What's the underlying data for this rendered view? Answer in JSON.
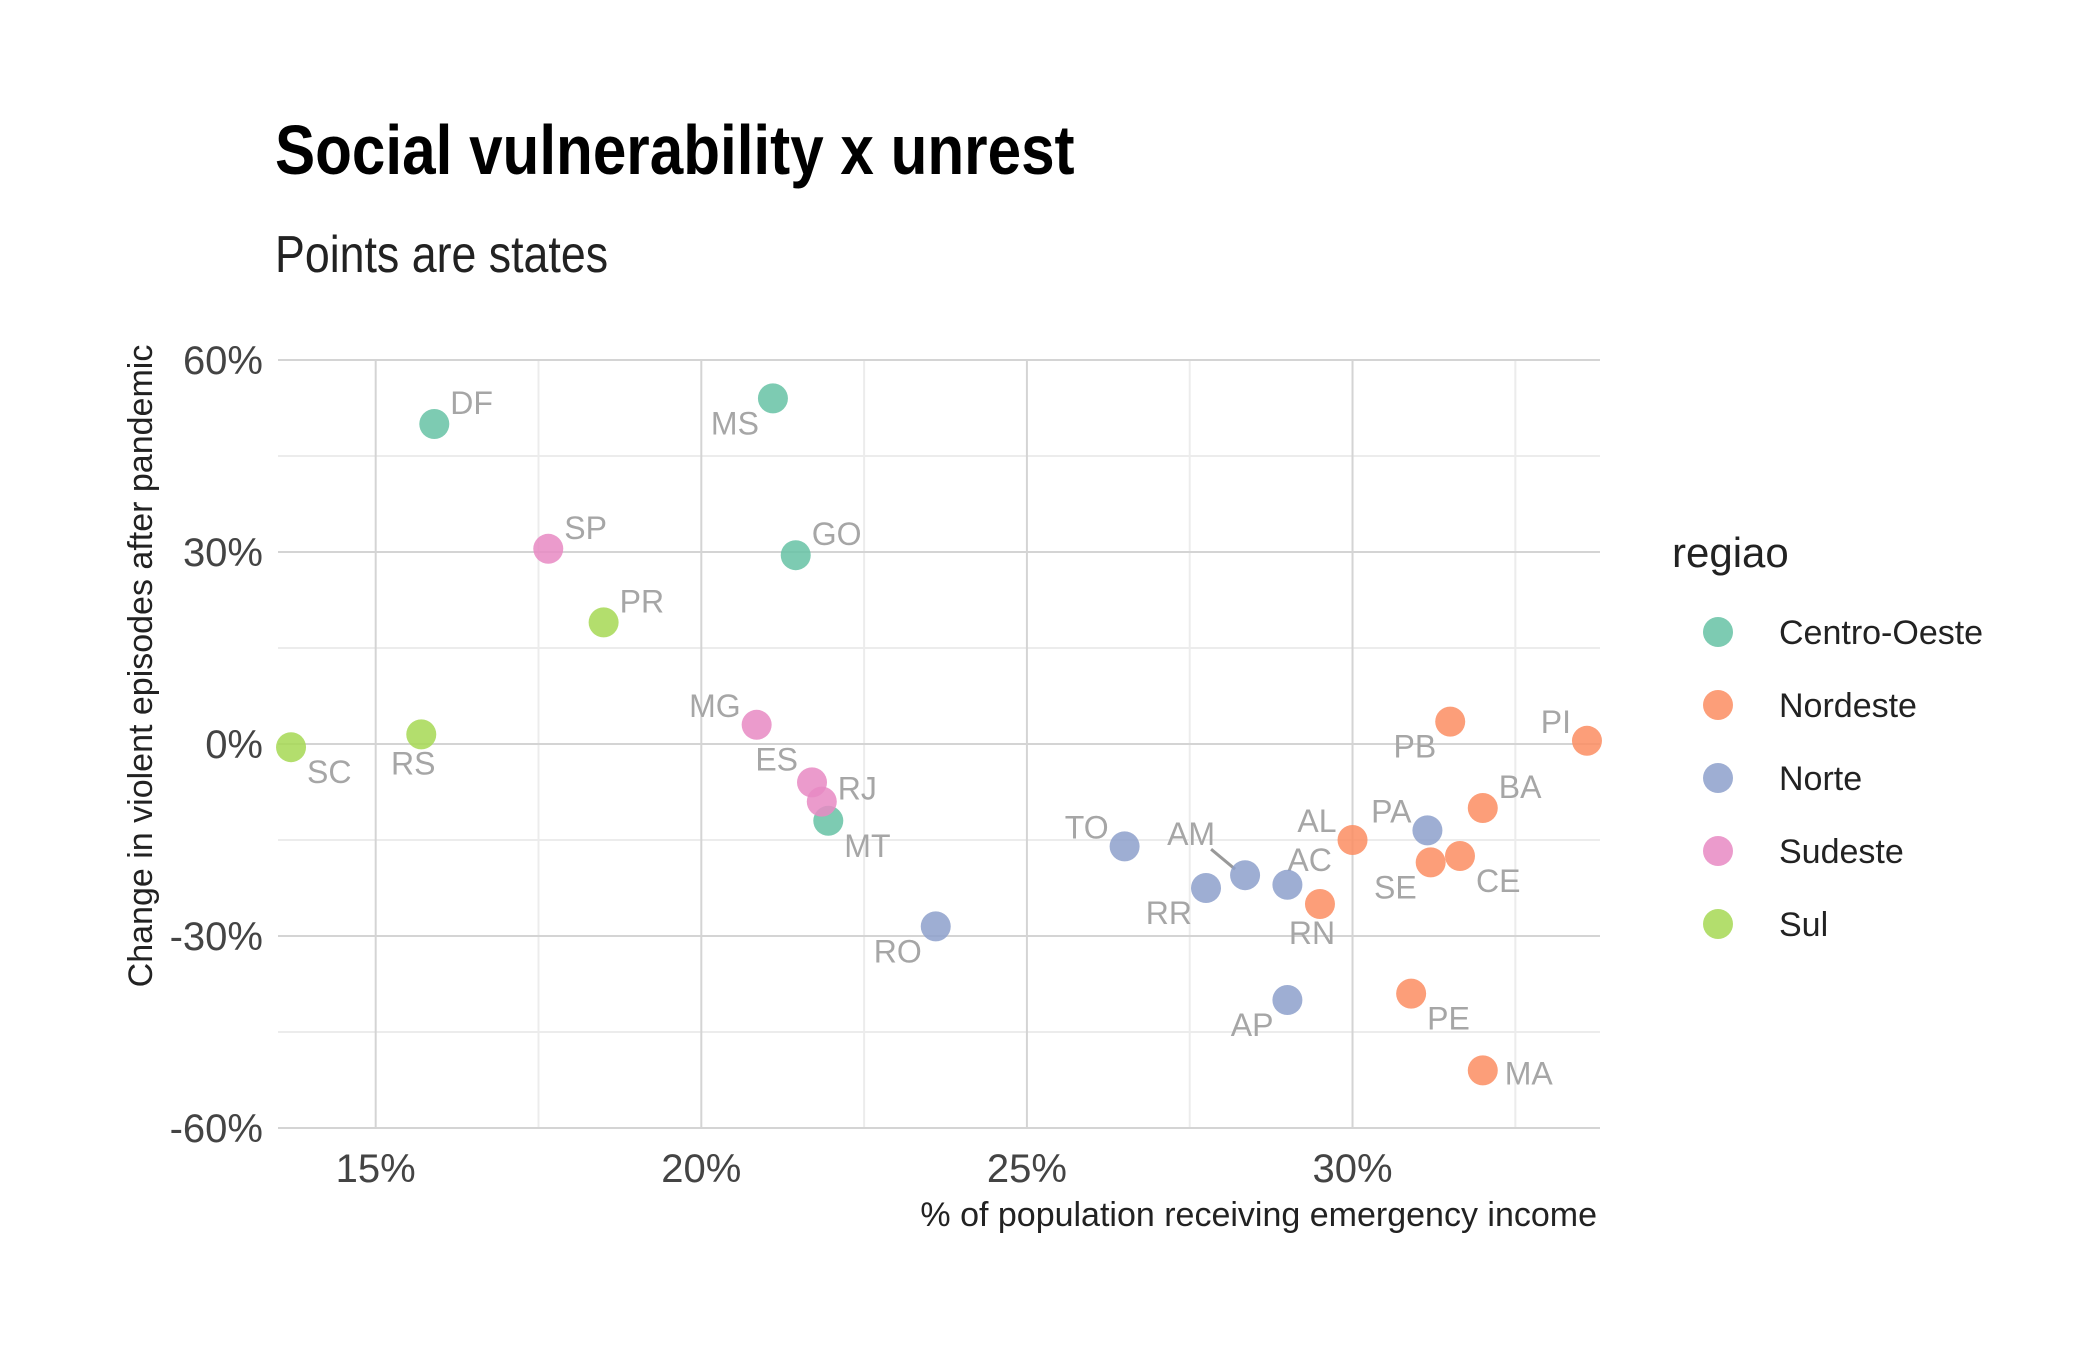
{
  "chart_data": {
    "type": "scatter",
    "title": "Social vulnerability x unrest",
    "subtitle": "Points are states",
    "xlabel": "% of population receiving emergency income",
    "ylabel": "Change in violent episodes after pandemic",
    "x_unit": "%",
    "y_unit": "%",
    "xlim": [
      13.5,
      33.8
    ],
    "ylim": [
      -60,
      60
    ],
    "x_ticks": [
      {
        "value": 15,
        "label": "15%"
      },
      {
        "value": 20,
        "label": "20%"
      },
      {
        "value": 25,
        "label": "25%"
      },
      {
        "value": 30,
        "label": "30%"
      }
    ],
    "x_minor_ticks": [
      17.5,
      22.5,
      27.5,
      32.5
    ],
    "y_ticks": [
      {
        "value": 60,
        "label": "60%"
      },
      {
        "value": 30,
        "label": "30%"
      },
      {
        "value": 0,
        "label": "0%"
      },
      {
        "value": -30,
        "label": "-30%"
      },
      {
        "value": -60,
        "label": "-60%"
      }
    ],
    "y_minor_ticks": [
      45,
      15,
      -15,
      -45
    ],
    "grid": true,
    "legend": {
      "title": "regiao",
      "position": "right",
      "entries": [
        {
          "name": "Centro-Oeste",
          "color": "#66c2a5"
        },
        {
          "name": "Nordeste",
          "color": "#fc8d62"
        },
        {
          "name": "Norte",
          "color": "#8da0cb"
        },
        {
          "name": "Sudeste",
          "color": "#e78ac3"
        },
        {
          "name": "Sul",
          "color": "#a6d854"
        }
      ]
    },
    "points": [
      {
        "label": "DF",
        "region": "Centro-Oeste",
        "x": 15.9,
        "y": 50,
        "label_pos": "ne"
      },
      {
        "label": "MS",
        "region": "Centro-Oeste",
        "x": 21.1,
        "y": 54,
        "label_pos": "sw"
      },
      {
        "label": "GO",
        "region": "Centro-Oeste",
        "x": 21.45,
        "y": 29.5,
        "label_pos": "ne"
      },
      {
        "label": "MT",
        "region": "Centro-Oeste",
        "x": 21.95,
        "y": -12,
        "label_pos": "se"
      },
      {
        "label": "SP",
        "region": "Sudeste",
        "x": 17.65,
        "y": 30.5,
        "label_pos": "ne"
      },
      {
        "label": "MG",
        "region": "Sudeste",
        "x": 20.85,
        "y": 3,
        "label_pos": "nw"
      },
      {
        "label": "ES",
        "region": "Sudeste",
        "x": 21.7,
        "y": -6,
        "label_pos": "nw2"
      },
      {
        "label": "RJ",
        "region": "Sudeste",
        "x": 21.85,
        "y": -9,
        "label_pos": "ne2"
      },
      {
        "label": "PR",
        "region": "Sul",
        "x": 18.5,
        "y": 19,
        "label_pos": "ne"
      },
      {
        "label": "SC",
        "region": "Sul",
        "x": 13.7,
        "y": -0.5,
        "label_pos": "se"
      },
      {
        "label": "RS",
        "region": "Sul",
        "x": 15.7,
        "y": 1.5,
        "label_pos": "s"
      },
      {
        "label": "RO",
        "region": "Norte",
        "x": 23.6,
        "y": -28.5,
        "label_pos": "sw"
      },
      {
        "label": "TO",
        "region": "Norte",
        "x": 26.5,
        "y": -16,
        "label_pos": "nw"
      },
      {
        "label": "RR",
        "region": "Norte",
        "x": 27.75,
        "y": -22.5,
        "label_pos": "sw"
      },
      {
        "label": "AM",
        "region": "Norte",
        "x": 28.35,
        "y": -20.5,
        "label_pos": "nw-far"
      },
      {
        "label": "AC",
        "region": "Norte",
        "x": 29.0,
        "y": -22,
        "label_pos": "n"
      },
      {
        "label": "AP",
        "region": "Norte",
        "x": 29.0,
        "y": -40,
        "label_pos": "sw"
      },
      {
        "label": "PA",
        "region": "Norte",
        "x": 31.15,
        "y": -13.5,
        "label_pos": "nw"
      },
      {
        "label": "AL",
        "region": "Nordeste",
        "x": 30.0,
        "y": -15,
        "label_pos": "nw"
      },
      {
        "label": "RN",
        "region": "Nordeste",
        "x": 29.5,
        "y": -25,
        "label_pos": "s"
      },
      {
        "label": "SE",
        "region": "Nordeste",
        "x": 31.2,
        "y": -18.5,
        "label_pos": "sw"
      },
      {
        "label": "CE",
        "region": "Nordeste",
        "x": 31.65,
        "y": -17.5,
        "label_pos": "se"
      },
      {
        "label": "BA",
        "region": "Nordeste",
        "x": 32.0,
        "y": -10,
        "label_pos": "ne"
      },
      {
        "label": "PB",
        "region": "Nordeste",
        "x": 31.5,
        "y": 3.5,
        "label_pos": "sw"
      },
      {
        "label": "PI",
        "region": "Nordeste",
        "x": 33.6,
        "y": 0.5,
        "label_pos": "nw"
      },
      {
        "label": "PE",
        "region": "Nordeste",
        "x": 30.9,
        "y": -39,
        "label_pos": "se"
      },
      {
        "label": "MA",
        "region": "Nordeste",
        "x": 32.0,
        "y": -51,
        "label_pos": "e"
      }
    ]
  }
}
